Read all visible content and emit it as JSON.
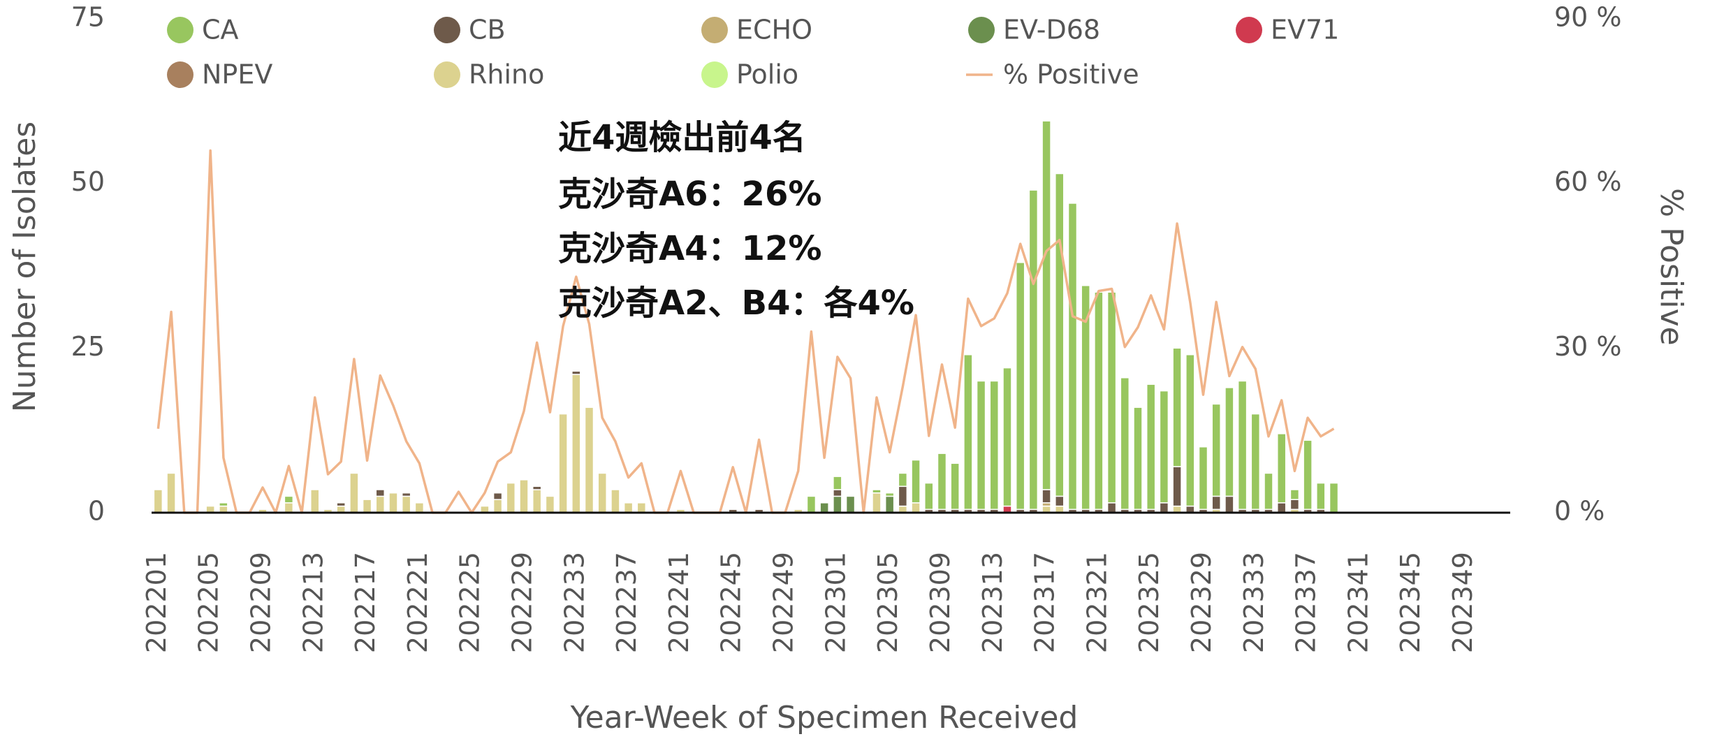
{
  "chart_data": {
    "type": "bar",
    "stacked": true,
    "annotations": [
      "近4週檢出前4名",
      "克沙奇A6：26%",
      "克沙奇A4：12%",
      "克沙奇A2、B4：各4%"
    ],
    "xlabel": "Year-Week of Specimen Received",
    "ylabel": "Number of Isolates",
    "y2label": "% Positive",
    "ylim": [
      0,
      75
    ],
    "yticks": [
      0,
      25,
      50,
      75
    ],
    "y2lim": [
      0,
      90
    ],
    "y2ticks": [
      {
        "value": 0,
        "label": "0 %"
      },
      {
        "value": 30,
        "label": "30 %"
      },
      {
        "value": 60,
        "label": "60 %"
      },
      {
        "value": 90,
        "label": "90 %"
      }
    ],
    "grid": false,
    "categories": [
      "202201",
      null,
      null,
      null,
      "202205",
      null,
      null,
      null,
      "202209",
      null,
      null,
      null,
      "202213",
      null,
      null,
      null,
      "202217",
      null,
      null,
      null,
      "202221",
      null,
      null,
      null,
      "202225",
      null,
      null,
      null,
      "202229",
      null,
      null,
      null,
      "202233",
      null,
      null,
      null,
      "202237",
      null,
      null,
      null,
      "202241",
      null,
      null,
      null,
      "202245",
      null,
      null,
      null,
      "202249",
      null,
      null,
      null,
      "202301",
      null,
      null,
      null,
      "202305",
      null,
      null,
      null,
      "202309",
      null,
      null,
      null,
      "202313",
      null,
      null,
      null,
      "202317",
      null,
      null,
      null,
      "202321",
      null,
      null,
      null,
      "202325",
      null,
      null,
      null,
      "202329",
      null,
      null,
      null,
      "202333",
      null,
      null,
      null,
      "202337",
      null,
      null,
      null,
      "202341",
      null,
      null,
      null,
      "202345",
      null,
      null,
      null,
      "202349",
      null,
      null,
      null
    ],
    "series": [
      {
        "name": "CA",
        "color": "#98c65f",
        "values": [
          0,
          0,
          0,
          0,
          0,
          0.5,
          0,
          0,
          0,
          0,
          1,
          0,
          0,
          0,
          0,
          0,
          0,
          0,
          0,
          0,
          0,
          0,
          0,
          0,
          0,
          0,
          0,
          0,
          0,
          0,
          0,
          0,
          0,
          0,
          0,
          0,
          0,
          0,
          0,
          0,
          0,
          0,
          0,
          0,
          0,
          0,
          0,
          0,
          0,
          0,
          2.5,
          0,
          2,
          0,
          0,
          0.5,
          0.5,
          2,
          6.5,
          4,
          8.5,
          7,
          23.5,
          19.5,
          19.5,
          21,
          37.5,
          48.5,
          56,
          49,
          46.5,
          34,
          33,
          32,
          20,
          15.5,
          19,
          17,
          18,
          23,
          9.5,
          14,
          16.5,
          19.5,
          14.5,
          5.5,
          10.5,
          1.5,
          10.5,
          4,
          4.5,
          0,
          0,
          0,
          0,
          0,
          0,
          0,
          0,
          0,
          0,
          0,
          0,
          0
        ]
      },
      {
        "name": "CB",
        "color": "#6e5a4a",
        "values": [
          0,
          0,
          0,
          0,
          0,
          0,
          0,
          0,
          0,
          0,
          0,
          0,
          0,
          0,
          0.5,
          0,
          0,
          1,
          0,
          0.5,
          0,
          0,
          0,
          0,
          0,
          0,
          1,
          0,
          0,
          0.5,
          0,
          0,
          0.5,
          0,
          0,
          0,
          0,
          0,
          0,
          0,
          0,
          0,
          0,
          0,
          0.5,
          0,
          0.5,
          0,
          0,
          0,
          0,
          0,
          1,
          0,
          0,
          0,
          0,
          3,
          0,
          0.5,
          0.5,
          0.5,
          0.5,
          0.5,
          0.5,
          0,
          0.5,
          0.5,
          2,
          1.5,
          0.5,
          0.5,
          0.5,
          1.5,
          0.5,
          0.5,
          0.5,
          1.5,
          6,
          1,
          0.5,
          2,
          2.5,
          0.5,
          0.5,
          0.5,
          1.5,
          1.5,
          0.5,
          0.5,
          0,
          0,
          0,
          0,
          0,
          0,
          0,
          0,
          0,
          0,
          0,
          0,
          0,
          0
        ]
      },
      {
        "name": "ECHO",
        "color": "#c4ad73",
        "values": [
          0,
          0,
          0,
          0,
          0,
          0,
          0,
          0,
          0,
          0,
          0,
          0,
          0,
          0,
          0,
          0,
          0,
          0,
          0,
          0,
          0,
          0,
          0,
          0,
          0,
          0,
          0,
          0,
          0,
          0,
          0,
          0,
          0,
          0,
          0,
          0,
          0,
          0,
          0,
          0,
          0,
          0,
          0,
          0,
          0,
          0,
          0,
          0,
          0,
          0,
          0,
          0,
          0,
          0,
          0,
          0,
          0,
          0,
          0,
          0,
          0,
          0,
          0,
          0,
          0,
          0,
          0,
          0,
          0.5,
          0,
          0,
          0,
          0,
          0,
          0,
          0,
          0,
          0,
          0,
          0,
          0,
          0,
          0,
          0,
          0,
          0,
          0,
          0,
          0,
          0,
          0,
          0,
          0,
          0,
          0,
          0,
          0,
          0,
          0,
          0,
          0,
          0,
          0,
          0
        ]
      },
      {
        "name": "EV-D68",
        "color": "#6b8f4e",
        "values": [
          0,
          0,
          0,
          0,
          0,
          0,
          0,
          0,
          0,
          0,
          0,
          0,
          0,
          0,
          0,
          0,
          0,
          0,
          0,
          0,
          0,
          0,
          0,
          0,
          0,
          0,
          0,
          0,
          0,
          0,
          0,
          0,
          0,
          0,
          0,
          0,
          0,
          0,
          0,
          0,
          0,
          0,
          0,
          0,
          0,
          0,
          0,
          0,
          0,
          0,
          0,
          1.5,
          2.5,
          2.5,
          0,
          0,
          2.5,
          0,
          0,
          0,
          0,
          0,
          0,
          0,
          0,
          0,
          0,
          0,
          0,
          0,
          0,
          0,
          0,
          0,
          0,
          0,
          0,
          0,
          0,
          0,
          0,
          0,
          0,
          0,
          0,
          0,
          0,
          0,
          0,
          0,
          0,
          0,
          0,
          0,
          0,
          0,
          0,
          0,
          0,
          0,
          0,
          0,
          0,
          0
        ]
      },
      {
        "name": "EV71",
        "color": "#d03a4f",
        "values": [
          0,
          0,
          0,
          0,
          0,
          0,
          0,
          0,
          0,
          0,
          0,
          0,
          0,
          0,
          0,
          0,
          0,
          0,
          0,
          0,
          0,
          0,
          0,
          0,
          0,
          0,
          0,
          0,
          0,
          0,
          0,
          0,
          0,
          0,
          0,
          0,
          0,
          0,
          0,
          0,
          0,
          0,
          0,
          0,
          0,
          0,
          0,
          0,
          0,
          0,
          0,
          0,
          0,
          0,
          0,
          0,
          0,
          0,
          0,
          0,
          0,
          0,
          0,
          0,
          0,
          1,
          0,
          0,
          0,
          0,
          0,
          0,
          0,
          0,
          0,
          0,
          0,
          0,
          0,
          0,
          0,
          0,
          0,
          0,
          0,
          0,
          0,
          0,
          0,
          0,
          0,
          0,
          0,
          0,
          0,
          0,
          0,
          0,
          0,
          0,
          0,
          0,
          0,
          0
        ]
      },
      {
        "name": "NPEV",
        "color": "#a8805e",
        "values": [
          0,
          0,
          0,
          0,
          0,
          0,
          0,
          0,
          0,
          0,
          0,
          0,
          0,
          0,
          0,
          0,
          0,
          0,
          0,
          0,
          0,
          0,
          0,
          0,
          0,
          0,
          0,
          0,
          0,
          0,
          0,
          0,
          0,
          0,
          0,
          0,
          0,
          0,
          0,
          0,
          0,
          0,
          0,
          0,
          0,
          0,
          0,
          0,
          0,
          0,
          0,
          0,
          0,
          0,
          0,
          0,
          0,
          0,
          0,
          0,
          0,
          0,
          0,
          0,
          0,
          0,
          0,
          0,
          0,
          0,
          0,
          0,
          0,
          0,
          0,
          0,
          0,
          0,
          0,
          0,
          0,
          0,
          0,
          0,
          0,
          0,
          0,
          0,
          0,
          0,
          0,
          0,
          0,
          0,
          0,
          0,
          0,
          0,
          0,
          0,
          0,
          0,
          0,
          0
        ]
      },
      {
        "name": "Rhino",
        "color": "#dcd28f",
        "values": [
          3.5,
          6,
          0,
          0,
          1,
          1,
          0,
          0,
          0.5,
          0,
          1.5,
          0,
          3.5,
          0.5,
          1,
          6,
          2,
          2.5,
          3,
          2.5,
          1.5,
          0,
          0,
          0,
          0,
          1,
          2,
          4.5,
          5,
          3.5,
          2.5,
          15,
          21,
          16,
          6,
          3.5,
          1.5,
          1.5,
          0,
          0,
          0.5,
          0,
          0,
          0,
          0,
          0,
          0,
          0,
          0,
          0.5,
          0,
          0,
          0,
          0,
          0,
          3,
          0,
          1,
          1.5,
          0,
          0,
          0,
          0,
          0,
          0,
          0,
          0,
          0,
          1,
          1,
          0,
          0,
          0,
          0,
          0,
          0,
          0,
          0,
          1,
          0,
          0,
          0.5,
          0,
          0,
          0,
          0,
          0,
          0.5,
          0,
          0,
          0,
          0,
          0,
          0,
          0,
          0,
          0,
          0,
          0,
          0,
          0,
          0,
          0,
          0
        ]
      },
      {
        "name": "Polio",
        "color": "#c8f58c",
        "values": [
          0,
          0,
          0,
          0,
          0,
          0,
          0,
          0,
          0,
          0,
          0,
          0,
          0,
          0,
          0,
          0,
          0,
          0,
          0,
          0,
          0,
          0,
          0,
          0,
          0,
          0,
          0,
          0,
          0,
          0,
          0,
          0,
          0,
          0,
          0,
          0,
          0,
          0,
          0,
          0,
          0,
          0,
          0,
          0,
          0,
          0,
          0,
          0,
          0,
          0,
          0,
          0,
          0,
          0,
          0,
          0,
          0,
          0,
          0,
          0,
          0,
          0,
          0,
          0,
          0,
          0,
          0,
          0,
          0,
          0,
          0,
          0,
          0,
          0,
          0,
          0,
          0,
          0,
          0,
          0,
          0,
          0,
          0,
          0,
          0,
          0,
          0,
          0,
          0,
          0,
          0,
          0,
          0,
          0,
          0,
          0,
          0,
          0,
          0,
          0,
          0,
          0,
          0,
          0
        ]
      },
      {
        "name": "% Positive",
        "color": "#f0b48a",
        "axis": "y2",
        "values": [
          15.3,
          36.6,
          0,
          0,
          66,
          10,
          0,
          0,
          4.6,
          0,
          8.5,
          0,
          21,
          7,
          9.3,
          28,
          9.5,
          25,
          19.5,
          13,
          9,
          0,
          0,
          3.8,
          0,
          3.6,
          9.3,
          11,
          18.5,
          31,
          18.3,
          34,
          43,
          34.4,
          17.3,
          13,
          6.4,
          9,
          0,
          0,
          7.6,
          0,
          0,
          0,
          8.3,
          0,
          13.3,
          0,
          0,
          7.6,
          33,
          10,
          28.4,
          24.5,
          0,
          21,
          11,
          23,
          36,
          14,
          27,
          15.5,
          39,
          34,
          35.4,
          40,
          49,
          41.7,
          47.7,
          49.7,
          35.8,
          34.8,
          40.4,
          40.8,
          30.2,
          33.8,
          39.6,
          33.4,
          52.7,
          38.4,
          21.5,
          38.4,
          24.9,
          30.2,
          26.2,
          13.9,
          20.5,
          7.6,
          17.3,
          13.9,
          15.3,
          null,
          null,
          null,
          null,
          null,
          null,
          null,
          null,
          null,
          null,
          null,
          null,
          null
        ]
      }
    ]
  }
}
